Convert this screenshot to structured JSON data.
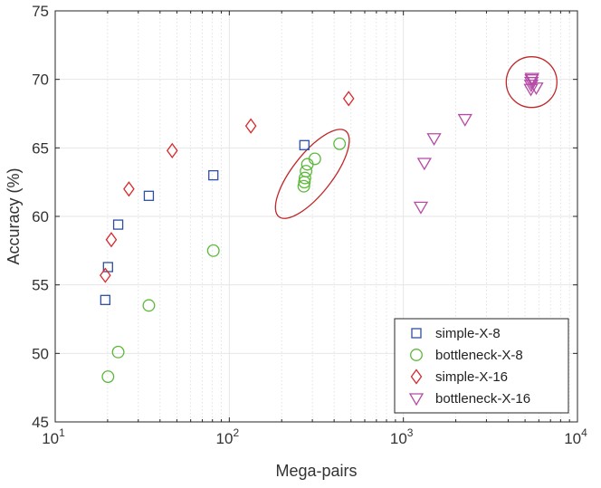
{
  "chart_data": {
    "type": "scatter",
    "xlabel": "Mega-pairs",
    "ylabel": "Accuracy (%)",
    "xscale": "log",
    "xlim": [
      10,
      10000
    ],
    "ylim": [
      45,
      75
    ],
    "grid": true,
    "legend_position": "bottom-right",
    "x_ticks": [
      {
        "value": 10,
        "base": "10",
        "exp": "1"
      },
      {
        "value": 100,
        "base": "10",
        "exp": "2"
      },
      {
        "value": 1000,
        "base": "10",
        "exp": "3"
      },
      {
        "value": 10000,
        "base": "10",
        "exp": "4"
      }
    ],
    "y_ticks": [
      45,
      50,
      55,
      60,
      65,
      70,
      75
    ],
    "series": [
      {
        "name": "simple-X-8",
        "marker": "square",
        "color": "#2e4f9e",
        "points": [
          [
            19.4,
            53.9
          ],
          [
            20.1,
            56.3
          ],
          [
            23.0,
            59.4
          ],
          [
            34.5,
            61.5
          ],
          [
            81.0,
            63.0
          ],
          [
            270,
            65.2
          ]
        ]
      },
      {
        "name": "bottleneck-X-8",
        "marker": "circle",
        "color": "#5db83a",
        "points": [
          [
            20.1,
            48.3
          ],
          [
            23.0,
            50.1
          ],
          [
            34.5,
            53.5
          ],
          [
            81.0,
            57.5
          ],
          [
            268,
            62.2
          ],
          [
            270,
            62.5
          ],
          [
            272,
            62.8
          ],
          [
            276,
            63.3
          ],
          [
            281,
            63.8
          ],
          [
            310,
            64.2
          ],
          [
            430,
            65.3
          ]
        ]
      },
      {
        "name": "simple-X-16",
        "marker": "diamond",
        "color": "#d9282a",
        "points": [
          [
            19.4,
            55.7
          ],
          [
            21.0,
            58.3
          ],
          [
            26.5,
            62.0
          ],
          [
            47.0,
            64.8
          ],
          [
            133,
            66.6
          ],
          [
            485,
            68.6
          ]
        ]
      },
      {
        "name": "bottleneck-X-16",
        "marker": "triangle-down",
        "color": "#b54ba6",
        "points": [
          [
            1260,
            60.7
          ],
          [
            1320,
            63.9
          ],
          [
            1500,
            65.7
          ],
          [
            2260,
            67.1
          ],
          [
            5400,
            69.3
          ],
          [
            5420,
            69.6
          ],
          [
            5440,
            69.8
          ],
          [
            5460,
            70.0
          ],
          [
            5480,
            70.1
          ],
          [
            5800,
            69.4
          ]
        ]
      }
    ],
    "annotations": [
      {
        "shape": "ellipse",
        "color": "#c0282a",
        "center": [
          300,
          63.1
        ]
      },
      {
        "shape": "circle",
        "color": "#c0282a",
        "center": [
          5450,
          69.8
        ]
      }
    ]
  }
}
